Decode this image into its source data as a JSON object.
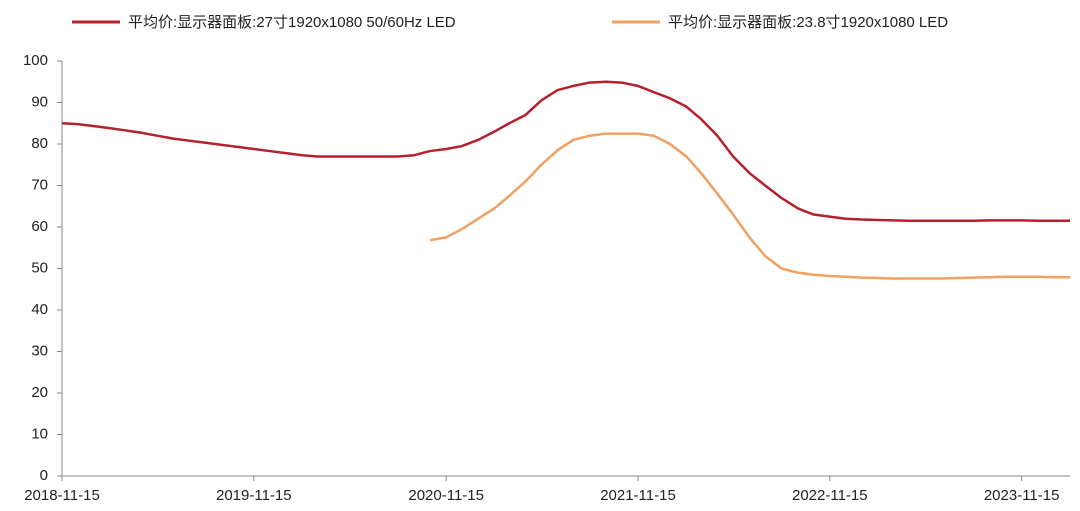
{
  "chart_data": {
    "type": "line",
    "x": [
      "2018-11-15",
      "2018-12-15",
      "2019-01-15",
      "2019-02-15",
      "2019-03-15",
      "2019-04-15",
      "2019-05-15",
      "2019-06-15",
      "2019-07-15",
      "2019-08-15",
      "2019-09-15",
      "2019-10-15",
      "2019-11-15",
      "2019-12-15",
      "2020-01-15",
      "2020-02-15",
      "2020-03-15",
      "2020-04-15",
      "2020-05-15",
      "2020-06-15",
      "2020-07-15",
      "2020-08-15",
      "2020-09-15",
      "2020-10-15",
      "2020-11-15",
      "2020-12-15",
      "2021-01-15",
      "2021-02-15",
      "2021-03-15",
      "2021-04-15",
      "2021-05-15",
      "2021-06-15",
      "2021-07-15",
      "2021-08-15",
      "2021-09-15",
      "2021-10-15",
      "2021-11-15",
      "2021-12-15",
      "2022-01-15",
      "2022-02-15",
      "2022-03-15",
      "2022-04-15",
      "2022-05-15",
      "2022-06-15",
      "2022-07-15",
      "2022-08-15",
      "2022-09-15",
      "2022-10-15",
      "2022-11-15",
      "2022-12-15",
      "2023-01-15",
      "2023-02-15",
      "2023-03-15",
      "2023-04-15",
      "2023-05-15",
      "2023-06-15",
      "2023-07-15",
      "2023-08-15",
      "2023-09-15",
      "2023-10-15",
      "2023-11-15",
      "2023-12-15",
      "2024-01-15",
      "2024-02-15"
    ],
    "series": [
      {
        "name": "平均价:显示器面板:27寸1920x1080 50/60Hz LED",
        "color": "#b5202e",
        "values": [
          85,
          84.8,
          84.3,
          83.8,
          83.3,
          82.7,
          82,
          81.3,
          80.8,
          80.3,
          79.8,
          79.3,
          78.8,
          78.3,
          77.8,
          77.3,
          77,
          77,
          77,
          77,
          77,
          77,
          77.3,
          78.3,
          78.8,
          79.5,
          81,
          83,
          85,
          87,
          90.5,
          93,
          94,
          94.8,
          95,
          94.8,
          94,
          92.5,
          91,
          89,
          86,
          82,
          77,
          73,
          70,
          67,
          64.5,
          63,
          62.5,
          62,
          61.8,
          61.7,
          61.6,
          61.5,
          61.5,
          61.5,
          61.5,
          61.5,
          61.6,
          61.6,
          61.6,
          61.5,
          61.5,
          61.5
        ]
      },
      {
        "name": "平均价:显示器面板:23.8寸1920x1080 LED",
        "color": "#f0a060",
        "values": [
          null,
          null,
          null,
          null,
          null,
          null,
          null,
          null,
          null,
          null,
          null,
          null,
          null,
          null,
          null,
          null,
          null,
          null,
          null,
          null,
          null,
          null,
          null,
          56.8,
          57.5,
          59.5,
          62,
          64.5,
          67.5,
          71,
          75,
          78.5,
          81,
          82,
          82.5,
          82.5,
          82.5,
          82,
          80,
          77,
          73,
          68,
          63,
          57.5,
          53,
          50,
          49,
          48.5,
          48.2,
          48,
          47.8,
          47.7,
          47.6,
          47.6,
          47.6,
          47.6,
          47.7,
          47.8,
          47.9,
          48,
          48,
          48,
          47.9,
          47.9
        ]
      }
    ],
    "xlim": [
      "2018-11-15",
      "2024-02-15"
    ],
    "xticks": [
      "2018-11-15",
      "2019-11-15",
      "2020-11-15",
      "2021-11-15",
      "2022-11-15",
      "2023-11-15"
    ],
    "ylim": [
      0,
      100
    ],
    "yticks": [
      0,
      10,
      20,
      30,
      40,
      50,
      60,
      70,
      80,
      90,
      100
    ],
    "grid": false,
    "legend": "top"
  }
}
